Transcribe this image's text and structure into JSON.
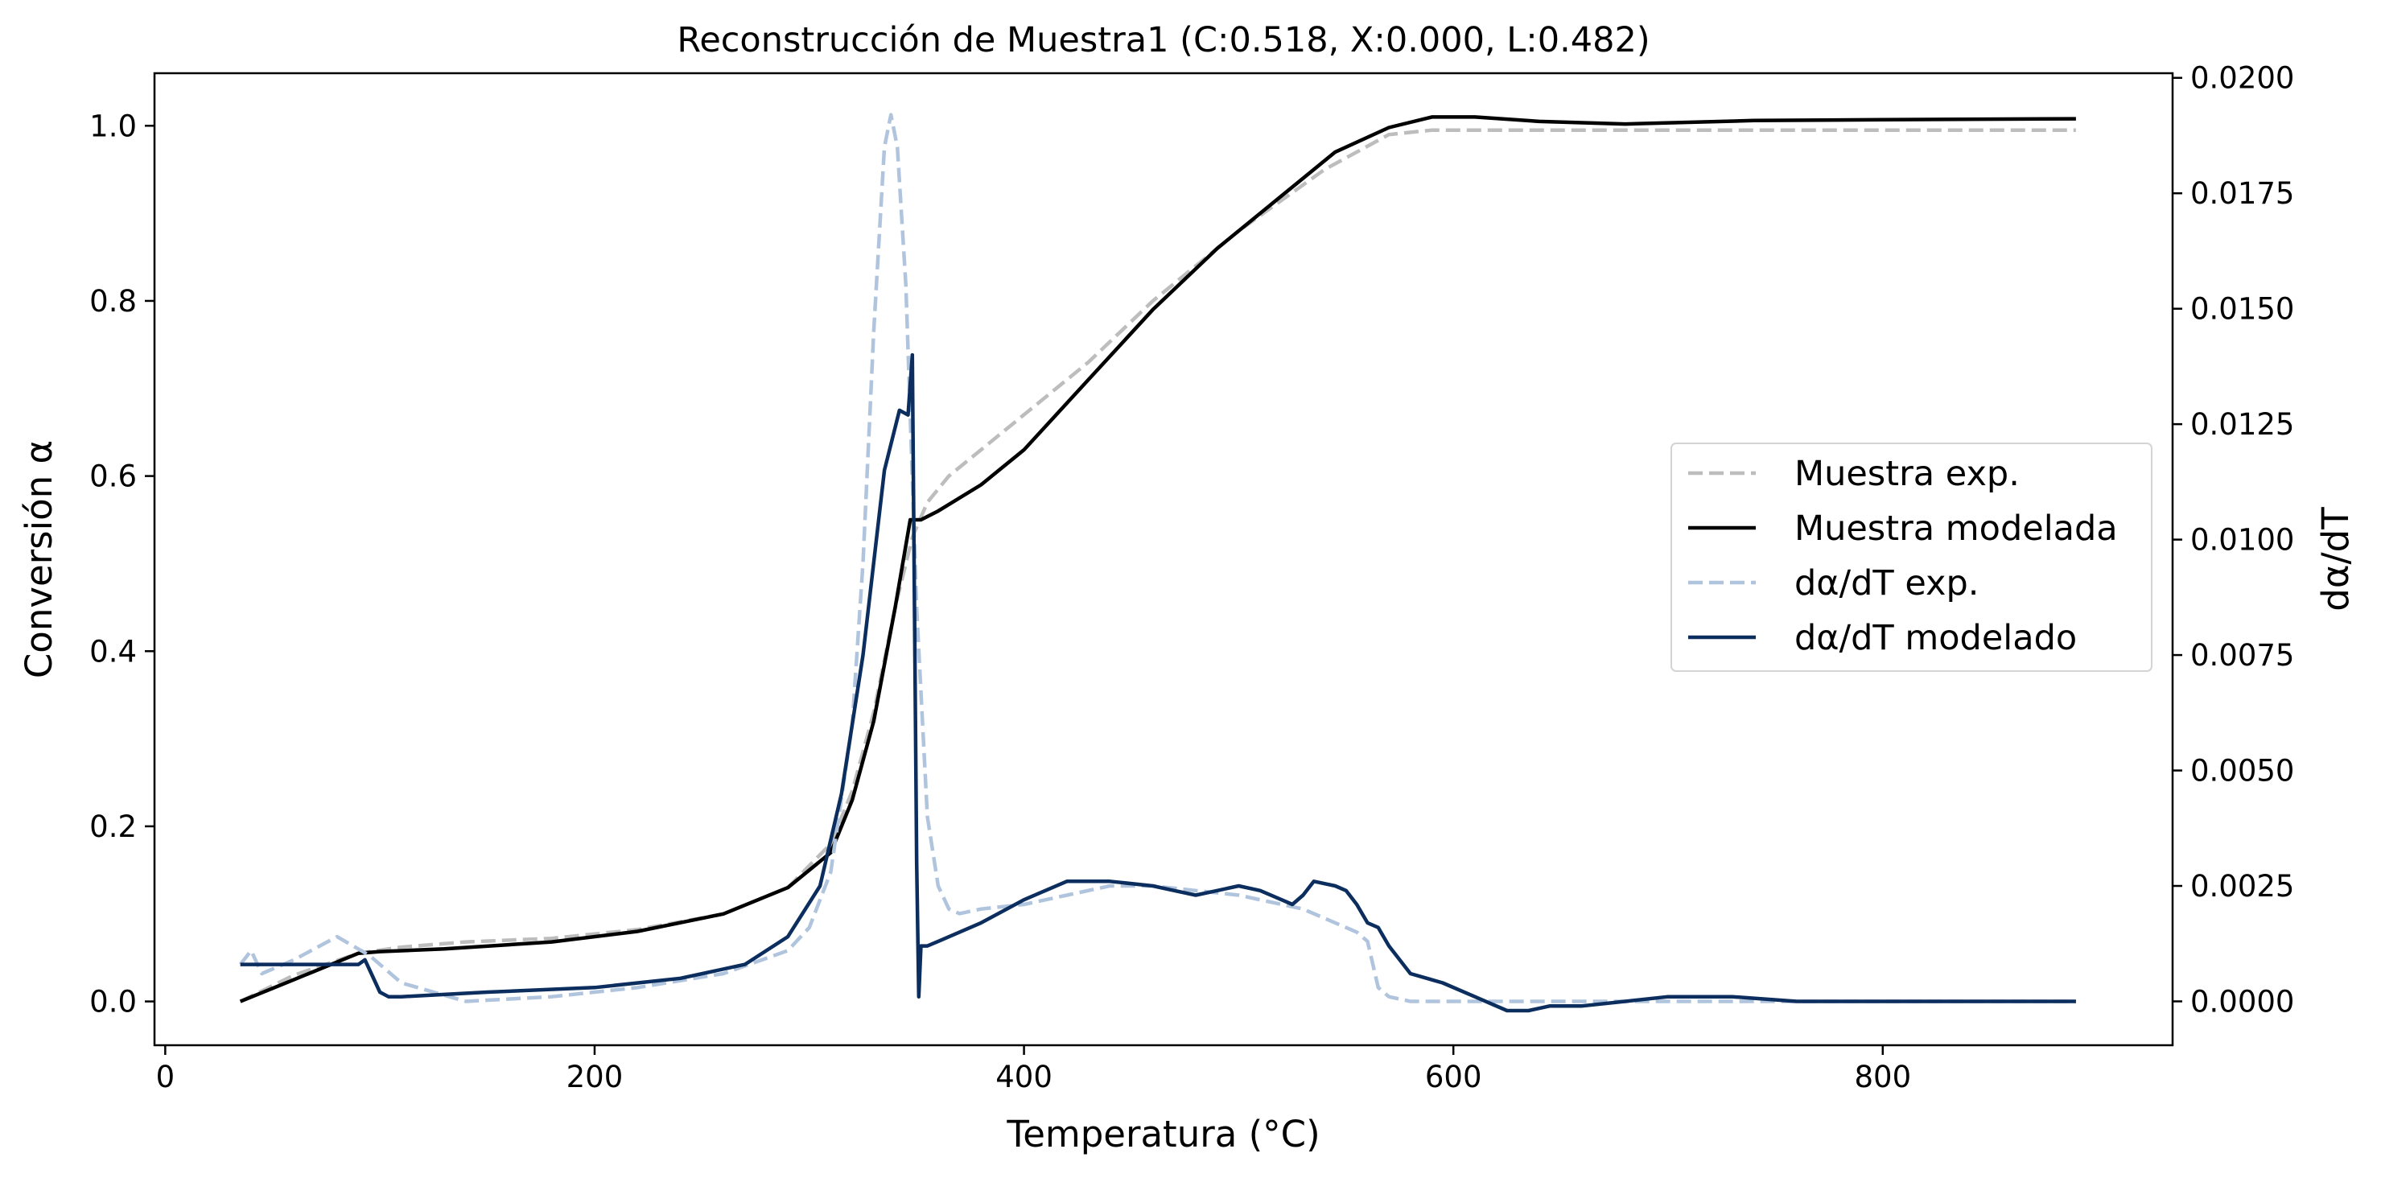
{
  "chart_data": {
    "type": "line",
    "title": "Reconstrucción de Muestra1 (C:0.518, X:0.000, L:0.482)",
    "xlabel": "Temperatura (°C)",
    "ylabel": "Conversión α",
    "y2label": "dα/dT",
    "xlim": [
      -5,
      935
    ],
    "ylim": [
      -0.05,
      1.06
    ],
    "y2lim": [
      -0.00095,
      0.0201
    ],
    "xticks": [
      0,
      200,
      400,
      600,
      800
    ],
    "xtick_labels": [
      "0",
      "200",
      "400",
      "600",
      "800"
    ],
    "yticks": [
      0.0,
      0.2,
      0.4,
      0.6,
      0.8,
      1.0
    ],
    "ytick_labels": [
      "0.0",
      "0.2",
      "0.4",
      "0.6",
      "0.8",
      "1.0"
    ],
    "y2ticks": [
      0.0,
      0.0025,
      0.005,
      0.0075,
      0.01,
      0.0125,
      0.015,
      0.0175,
      0.02
    ],
    "y2tick_labels": [
      "0.0000",
      "0.0025",
      "0.0050",
      "0.0075",
      "0.0100",
      "0.0125",
      "0.0150",
      "0.0175",
      "0.0200"
    ],
    "grid": false,
    "legend_position": "right",
    "series": [
      {
        "name": "Muestra exp.",
        "axis": "left",
        "color": "#bdbdbd",
        "dash": "dashed",
        "x": [
          35,
          60,
          90,
          110,
          140,
          180,
          220,
          260,
          290,
          310,
          320,
          330,
          340,
          348,
          355,
          365,
          380,
          400,
          430,
          460,
          500,
          540,
          570,
          590,
          620,
          700,
          800,
          890
        ],
        "y": [
          0.0,
          0.03,
          0.055,
          0.062,
          0.068,
          0.072,
          0.082,
          0.1,
          0.13,
          0.18,
          0.24,
          0.33,
          0.45,
          0.53,
          0.57,
          0.6,
          0.63,
          0.67,
          0.73,
          0.8,
          0.88,
          0.95,
          0.99,
          0.995,
          0.995,
          0.995,
          0.995,
          0.995
        ]
      },
      {
        "name": "Muestra modelada",
        "axis": "left",
        "color": "#000000",
        "dash": "solid",
        "x": [
          35,
          60,
          90,
          100,
          130,
          180,
          220,
          260,
          290,
          310,
          320,
          330,
          340,
          347,
          350,
          352,
          360,
          380,
          400,
          430,
          460,
          490,
          520,
          545,
          570,
          590,
          610,
          640,
          680,
          740,
          800,
          890
        ],
        "y": [
          0.0,
          0.025,
          0.055,
          0.057,
          0.06,
          0.068,
          0.08,
          0.1,
          0.13,
          0.17,
          0.23,
          0.32,
          0.45,
          0.55,
          0.55,
          0.55,
          0.56,
          0.59,
          0.63,
          0.71,
          0.79,
          0.86,
          0.92,
          0.97,
          0.998,
          1.01,
          1.01,
          1.005,
          1.002,
          1.006,
          1.007,
          1.008
        ]
      },
      {
        "name": "dα/dT exp.",
        "axis": "right",
        "color": "#b0c4de",
        "dash": "dashed",
        "x": [
          35,
          40,
          45,
          60,
          80,
          95,
          110,
          140,
          180,
          220,
          260,
          290,
          300,
          310,
          320,
          325,
          330,
          335,
          338,
          341,
          345,
          350,
          355,
          360,
          365,
          370,
          380,
          400,
          420,
          440,
          460,
          480,
          500,
          530,
          555,
          560,
          565,
          570,
          580,
          600,
          620,
          700,
          800,
          890
        ],
        "y": [
          0.0008,
          0.0011,
          0.0006,
          0.0009,
          0.0014,
          0.001,
          0.0004,
          0.0,
          0.0001,
          0.0003,
          0.0006,
          0.0011,
          0.0016,
          0.0028,
          0.006,
          0.0095,
          0.0145,
          0.0185,
          0.0192,
          0.0185,
          0.0155,
          0.0085,
          0.004,
          0.0025,
          0.002,
          0.0019,
          0.002,
          0.0021,
          0.0023,
          0.0025,
          0.0025,
          0.0024,
          0.0023,
          0.002,
          0.0015,
          0.0013,
          0.0003,
          0.0001,
          0.0,
          0.0,
          0.0,
          0.0,
          0.0,
          0.0
        ]
      },
      {
        "name": "dα/dT modelado",
        "axis": "right",
        "color": "#0b2e5e",
        "dash": "solid",
        "x": [
          35,
          60,
          90,
          93,
          96,
          100,
          104,
          110,
          150,
          200,
          240,
          270,
          290,
          305,
          315,
          325,
          335,
          342,
          346,
          348,
          349,
          350,
          351,
          352,
          353,
          355,
          360,
          380,
          400,
          420,
          440,
          460,
          470,
          480,
          490,
          500,
          510,
          520,
          525,
          530,
          535,
          545,
          550,
          555,
          560,
          565,
          570,
          580,
          595,
          610,
          625,
          635,
          645,
          660,
          680,
          700,
          730,
          760,
          800,
          890
        ],
        "y": [
          0.0008,
          0.0008,
          0.0008,
          0.0009,
          0.0006,
          0.0002,
          0.0001,
          0.0001,
          0.0002,
          0.0003,
          0.0005,
          0.0008,
          0.0014,
          0.0025,
          0.0045,
          0.0075,
          0.0115,
          0.0128,
          0.0127,
          0.014,
          0.0085,
          0.003,
          0.0001,
          0.0012,
          0.0012,
          0.0012,
          0.0013,
          0.0017,
          0.0022,
          0.0026,
          0.0026,
          0.0025,
          0.0024,
          0.0023,
          0.0024,
          0.0025,
          0.0024,
          0.0022,
          0.0021,
          0.0023,
          0.0026,
          0.0025,
          0.0024,
          0.0021,
          0.0017,
          0.0016,
          0.0012,
          0.0006,
          0.0004,
          0.0001,
          -0.0002,
          -0.0002,
          -0.0001,
          -0.0001,
          0.0,
          0.0001,
          0.0001,
          0.0,
          0.0,
          0.0
        ]
      }
    ]
  }
}
